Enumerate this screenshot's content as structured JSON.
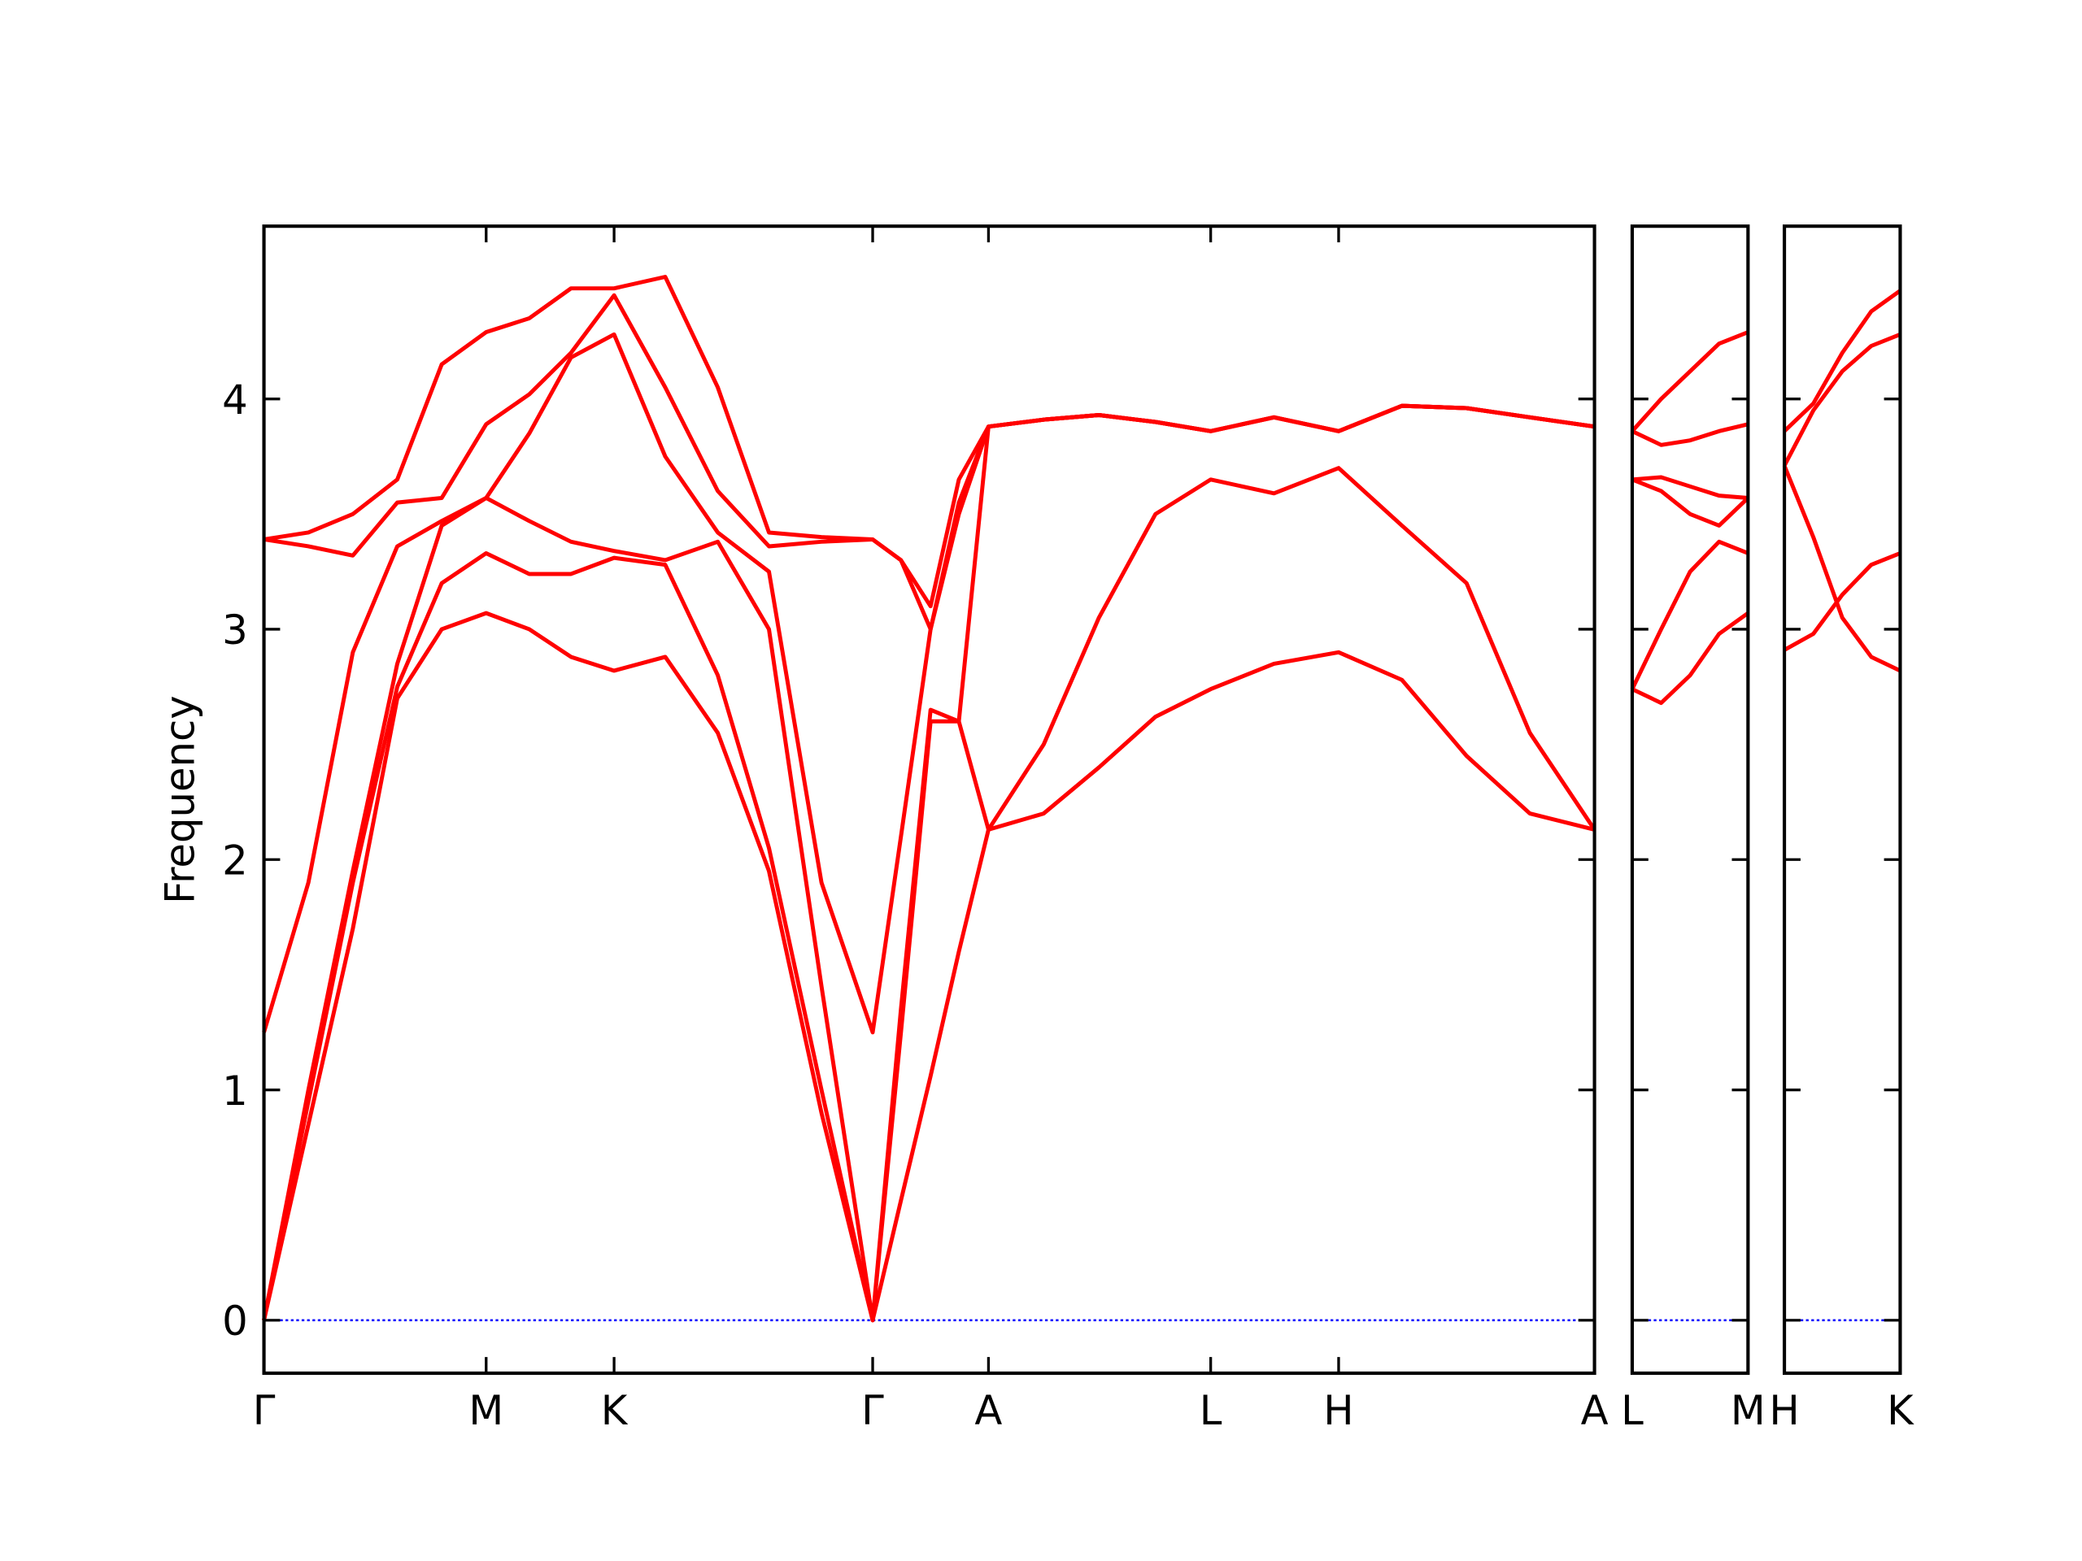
{
  "chart_data": [
    {
      "type": "line",
      "ylabel": "Frequency",
      "xlim": [
        0,
        9.88
      ],
      "ylim": [
        -0.23,
        4.75
      ],
      "yticks": [
        0,
        1,
        2,
        3,
        4
      ],
      "xticks": [
        {
          "value": 0,
          "label": "Γ"
        },
        {
          "value": 1.65,
          "label": "M"
        },
        {
          "value": 2.6,
          "label": "K"
        },
        {
          "value": 4.52,
          "label": "Γ"
        },
        {
          "value": 5.38,
          "label": "A"
        },
        {
          "value": 7.03,
          "label": "L"
        },
        {
          "value": 7.98,
          "label": "H"
        },
        {
          "value": 9.88,
          "label": "A"
        }
      ],
      "hline": 0,
      "hline_color": "#0000ff",
      "x": [
        0,
        0.33,
        0.66,
        0.99,
        1.32,
        1.65,
        1.97,
        2.28,
        2.6,
        2.98,
        3.37,
        3.75,
        4.14,
        4.52,
        4.73,
        4.95,
        5.16,
        5.38,
        5.79,
        6.2,
        6.62,
        7.03,
        7.5,
        7.98,
        8.45,
        8.93,
        9.4,
        9.88
      ],
      "series": [
        {
          "color": "#ff0000",
          "values": [
            0,
            0.85,
            1.7,
            2.7,
            3.0,
            3.07,
            3.0,
            2.88,
            2.82,
            2.88,
            2.55,
            1.95,
            0.9,
            0,
            0.52,
            1.06,
            1.6,
            2.13,
            2.2,
            2.4,
            2.62,
            2.74,
            2.85,
            2.9,
            2.78,
            2.45,
            2.2,
            2.13
          ]
        },
        {
          "color": "#ff0000",
          "values": [
            0,
            0.95,
            1.9,
            2.75,
            3.2,
            3.33,
            3.24,
            3.24,
            3.31,
            3.28,
            2.8,
            2.05,
            1.0,
            0,
            1.25,
            2.6,
            2.6,
            2.13,
            2.5,
            3.05,
            3.5,
            3.65,
            3.59,
            3.7,
            3.45,
            3.2,
            2.55,
            2.13
          ]
        },
        {
          "color": "#ff0000",
          "values": [
            0,
            1.0,
            1.95,
            2.85,
            3.45,
            3.57,
            3.47,
            3.38,
            3.34,
            3.3,
            3.38,
            3.0,
            1.45,
            0,
            1.35,
            2.65,
            2.6,
            3.88,
            3.91,
            3.93,
            3.9,
            3.86,
            3.92,
            3.86,
            3.97,
            3.96,
            3.92,
            3.88
          ]
        },
        {
          "color": "#ff0000",
          "values": [
            1.25,
            1.9,
            2.9,
            3.36,
            3.47,
            3.57,
            3.85,
            4.18,
            4.28,
            3.75,
            3.42,
            3.25,
            1.9,
            1.25,
            2.1,
            3.0,
            3.5,
            3.88,
            3.91,
            3.93,
            3.9,
            3.86,
            3.92,
            3.86,
            3.97,
            3.96,
            3.92,
            3.88
          ]
        },
        {
          "color": "#ff0000",
          "values": [
            3.39,
            3.36,
            3.32,
            3.55,
            3.57,
            3.89,
            4.02,
            4.2,
            4.45,
            4.05,
            3.6,
            3.36,
            3.38,
            3.39,
            3.3,
            3.0,
            3.55,
            3.88,
            3.91,
            3.93,
            3.9,
            3.86,
            3.92,
            3.86,
            3.97,
            3.96,
            3.92,
            3.88
          ]
        },
        {
          "color": "#ff0000",
          "values": [
            3.39,
            3.42,
            3.5,
            3.65,
            4.15,
            4.29,
            4.35,
            4.48,
            4.48,
            4.53,
            4.05,
            3.42,
            3.4,
            3.39,
            3.3,
            3.1,
            3.65,
            3.88,
            3.91,
            3.93,
            3.9,
            3.86,
            3.92,
            3.86,
            3.97,
            3.96,
            3.92,
            3.88
          ]
        }
      ]
    },
    {
      "type": "line",
      "sharey": true,
      "xlim": [
        0,
        0.86
      ],
      "ylim": [
        -0.23,
        4.75
      ],
      "xticks": [
        {
          "value": 0,
          "label": "L"
        },
        {
          "value": 0.86,
          "label": "M"
        }
      ],
      "hline": 0,
      "hline_color": "#0000ff",
      "x": [
        0,
        0.215,
        0.43,
        0.645,
        0.86
      ],
      "series": [
        {
          "color": "#ff0000",
          "values": [
            2.74,
            2.68,
            2.8,
            2.98,
            3.07
          ]
        },
        {
          "color": "#ff0000",
          "values": [
            2.74,
            3.0,
            3.25,
            3.38,
            3.33
          ]
        },
        {
          "color": "#ff0000",
          "values": [
            3.65,
            3.6,
            3.5,
            3.45,
            3.57
          ]
        },
        {
          "color": "#ff0000",
          "values": [
            3.65,
            3.66,
            3.62,
            3.58,
            3.57
          ]
        },
        {
          "color": "#ff0000",
          "values": [
            3.86,
            3.8,
            3.82,
            3.86,
            3.89
          ]
        },
        {
          "color": "#ff0000",
          "values": [
            3.86,
            4.0,
            4.12,
            4.24,
            4.29
          ]
        }
      ]
    },
    {
      "type": "line",
      "sharey": true,
      "xlim": [
        0,
        0.86
      ],
      "ylim": [
        -0.23,
        4.75
      ],
      "xticks": [
        {
          "value": 0,
          "label": "H"
        },
        {
          "value": 0.86,
          "label": "K"
        }
      ],
      "hline": 0,
      "hline_color": "#0000ff",
      "x": [
        0,
        0.215,
        0.43,
        0.645,
        0.86
      ],
      "series": [
        {
          "color": "#ff0000",
          "values": [
            2.91,
            2.98,
            3.15,
            3.28,
            3.33
          ]
        },
        {
          "color": "#ff0000",
          "values": [
            3.71,
            3.4,
            3.05,
            2.88,
            2.82
          ]
        },
        {
          "color": "#ff0000",
          "values": [
            3.71,
            3.95,
            4.12,
            4.23,
            4.28
          ]
        },
        {
          "color": "#ff0000",
          "values": [
            3.86,
            3.98,
            4.2,
            4.38,
            4.47
          ]
        }
      ]
    }
  ]
}
